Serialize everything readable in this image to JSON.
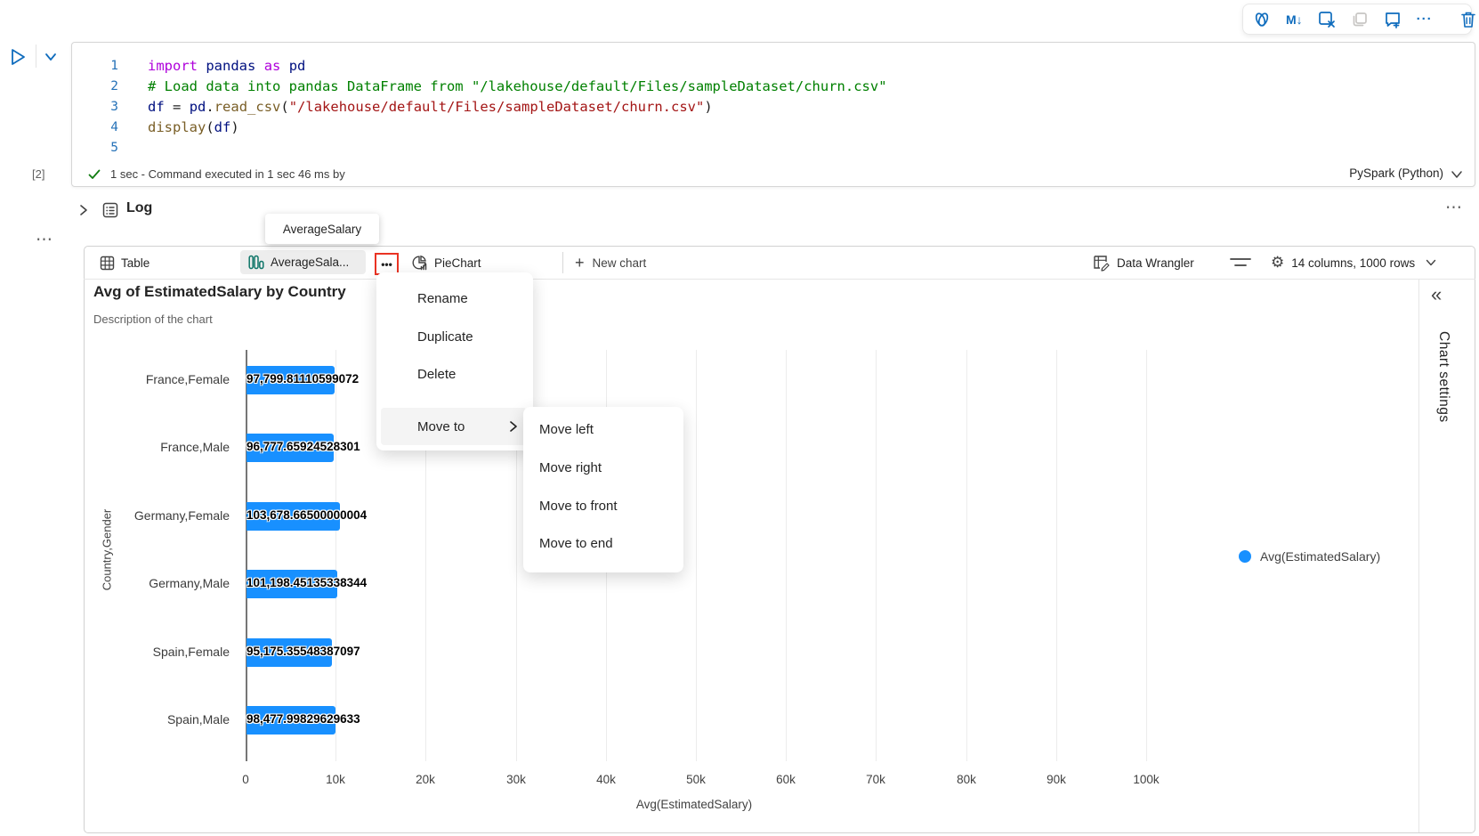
{
  "toolbar": {
    "markdown_glyph": "M↓",
    "more_glyph": "···"
  },
  "cell": {
    "execution_count": "[2]",
    "status": "1 sec - Command executed in 1 sec 46 ms by",
    "kernel": "PySpark (Python)",
    "code_lines": [
      {
        "n": "1",
        "tokens": [
          [
            "import",
            "kw"
          ],
          [
            " ",
            "pl"
          ],
          [
            "pandas",
            "vr"
          ],
          [
            " ",
            "pl"
          ],
          [
            "as",
            "kw"
          ],
          [
            " ",
            "pl"
          ],
          [
            "pd",
            "vr"
          ]
        ]
      },
      {
        "n": "2",
        "tokens": [
          [
            "# Load data into pandas DataFrame from \"/lakehouse/default/Files/sampleDataset/churn.csv\"",
            "cm"
          ]
        ]
      },
      {
        "n": "3",
        "tokens": [
          [
            "df",
            "vr"
          ],
          [
            " ",
            "pl"
          ],
          [
            "=",
            "pl"
          ],
          [
            " ",
            "pl"
          ],
          [
            "pd",
            "vr"
          ],
          [
            ".",
            "pl"
          ],
          [
            "read_csv",
            "fn"
          ],
          [
            "(",
            "pl"
          ],
          [
            "\"/lakehouse/default/Files/sampleDataset/churn.csv\"",
            "st"
          ],
          [
            ")",
            "pl"
          ]
        ]
      },
      {
        "n": "4",
        "tokens": [
          [
            "display",
            "fn"
          ],
          [
            "(",
            "pl"
          ],
          [
            "df",
            "vr"
          ],
          [
            ")",
            "pl"
          ]
        ]
      },
      {
        "n": "5",
        "tokens": []
      }
    ]
  },
  "log": {
    "label": "Log",
    "overflow_glyph": "⋯"
  },
  "tooltip": "AverageSalary",
  "tabs": {
    "table": "Table",
    "chart": "AverageSala...",
    "chart_more_glyph": "•••",
    "pie": "PieChart",
    "new_chart": "New chart",
    "plus_glyph": "+"
  },
  "actions": {
    "data_wrangler": "Data Wrangler",
    "shape_summary": "14 columns, 1000 rows",
    "gear_glyph": "⚙"
  },
  "menu": {
    "items": [
      "Rename",
      "Duplicate",
      "Delete"
    ],
    "move_to": "Move to",
    "submenu": [
      "Move left",
      "Move right",
      "Move to front",
      "Move to end"
    ]
  },
  "chart": {
    "title": "Avg of EstimatedSalary by Country",
    "description": "Description of the chart",
    "settings_label": "Chart settings",
    "collapse_glyph": "«",
    "legend_label": "Avg(EstimatedSalary)"
  },
  "chart_data": {
    "type": "bar",
    "orientation": "horizontal",
    "title": "Avg of EstimatedSalary by Country",
    "categories": [
      "France,Female",
      "France,Male",
      "Germany,Female",
      "Germany,Male",
      "Spain,Female",
      "Spain,Male"
    ],
    "values": [
      97799.81110599072,
      96777.65924528301,
      103678.66500000004,
      101198.45135338344,
      95175.35548387097,
      98477.99829629633
    ],
    "value_labels": [
      "97,799.81110599072",
      "96,777.65924528301",
      "103,678.66500000004",
      "101,198.45135338344",
      "95,175.35548387097",
      "98,477.99829629633"
    ],
    "xlabel": "Avg(EstimatedSalary)",
    "ylabel": "Country,Gender",
    "xlim": [
      0,
      110000
    ],
    "xticks": [
      "0",
      "10k",
      "20k",
      "30k",
      "40k",
      "50k",
      "60k",
      "70k",
      "80k",
      "90k",
      "100k"
    ],
    "xtick_values": [
      0,
      10000,
      20000,
      30000,
      40000,
      50000,
      60000,
      70000,
      80000,
      90000,
      100000
    ],
    "grid": true,
    "legend_position": "right",
    "bar_color": "#1890ff",
    "legend": [
      "Avg(EstimatedSalary)"
    ]
  }
}
